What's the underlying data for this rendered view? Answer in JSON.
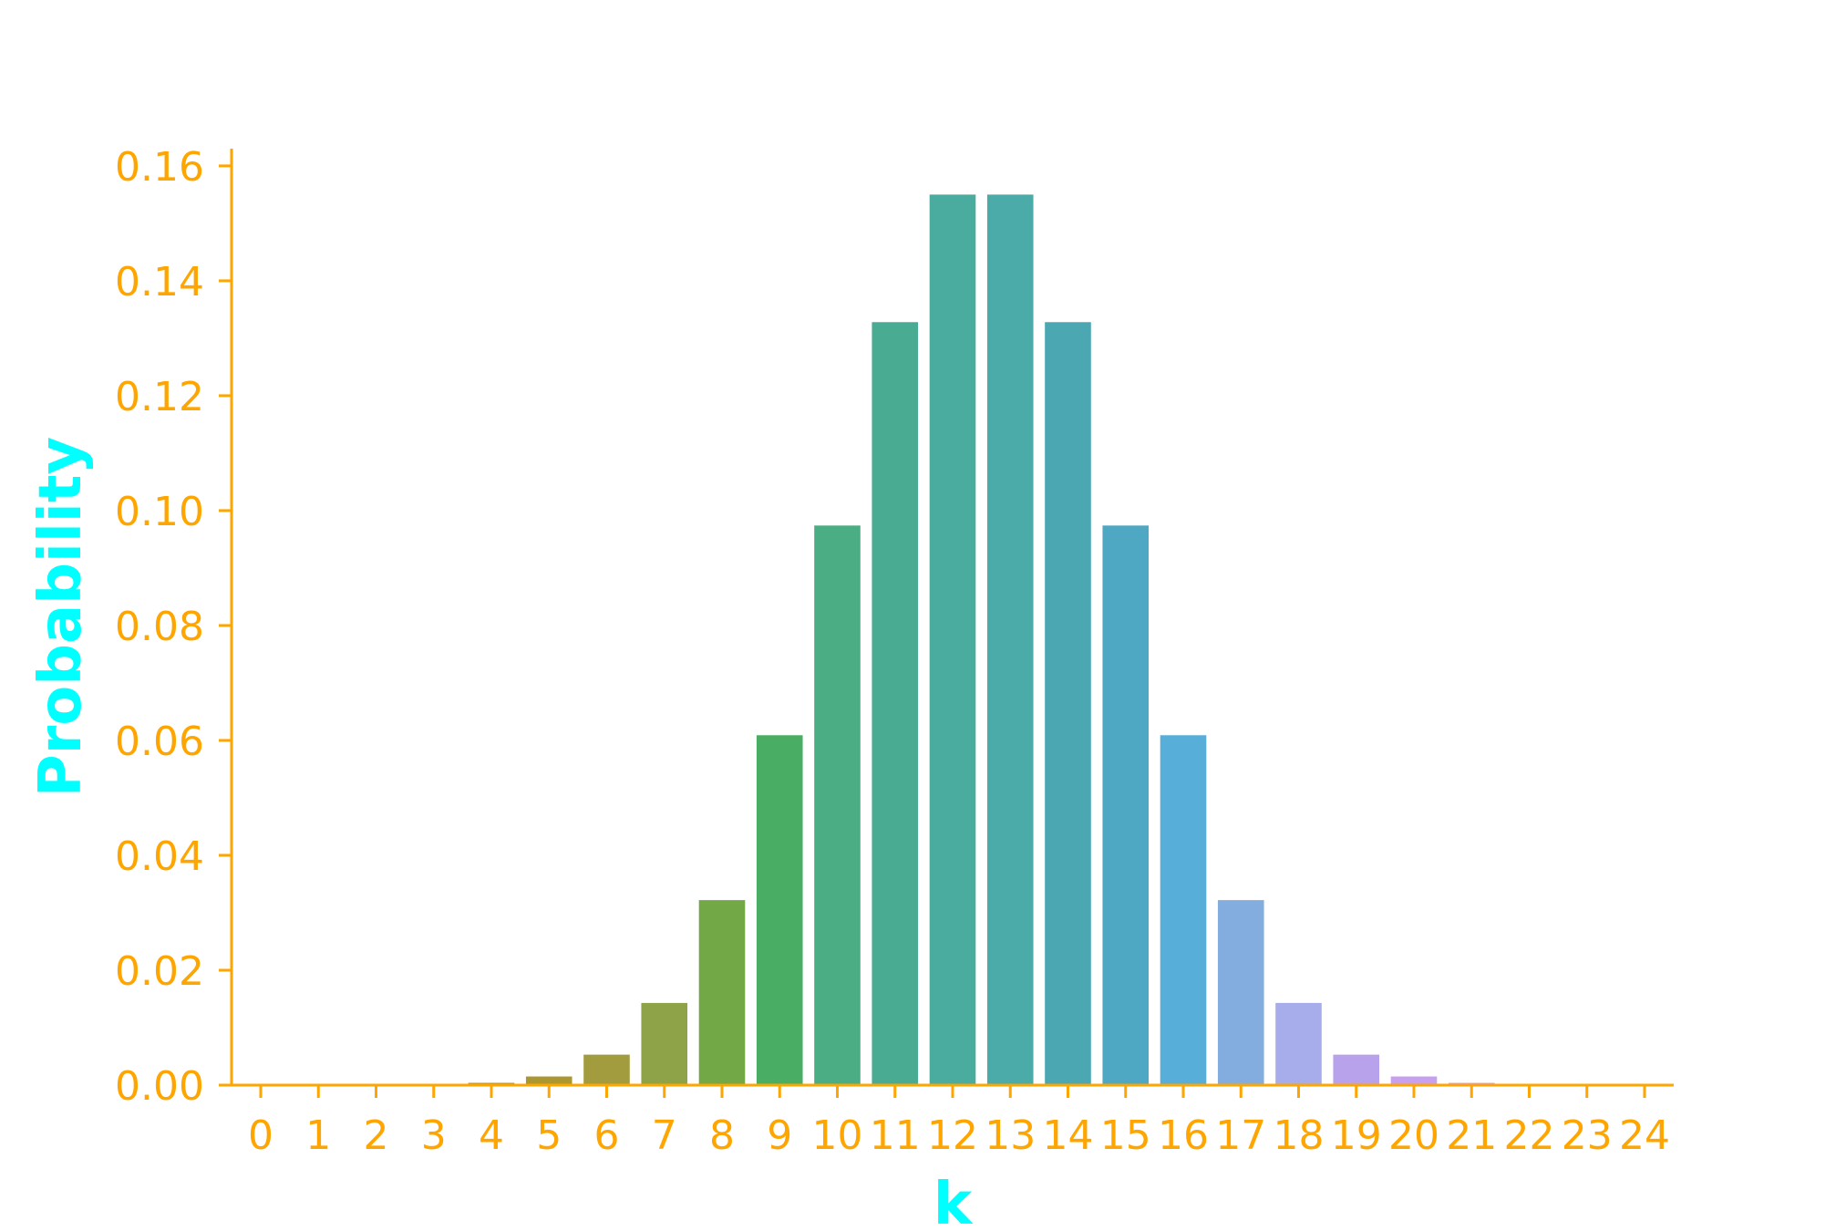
{
  "colors": {
    "axis": "#FFA500",
    "label": "#00FFFF",
    "background": "#FFFFFF"
  },
  "chart_data": {
    "type": "bar",
    "title": "",
    "xlabel": "k",
    "ylabel": "Probability",
    "ylim": [
      0,
      0.163
    ],
    "y_ticks": [
      "0.00",
      "0.02",
      "0.04",
      "0.06",
      "0.08",
      "0.10",
      "0.12",
      "0.14",
      "0.16"
    ],
    "y_tick_values": [
      0,
      0.02,
      0.04,
      0.06,
      0.08,
      0.1,
      0.12,
      0.14,
      0.16
    ],
    "categories": [
      "0",
      "1",
      "2",
      "3",
      "4",
      "5",
      "6",
      "7",
      "8",
      "9",
      "10",
      "11",
      "12",
      "13",
      "14",
      "15",
      "16",
      "17",
      "18",
      "19",
      "20",
      "21",
      "22",
      "23",
      "24"
    ],
    "values": [
      0.0,
      0.0,
      0.0,
      0.0001,
      0.0004,
      0.0015,
      0.0053,
      0.0143,
      0.0322,
      0.0609,
      0.0974,
      0.1328,
      0.155,
      0.155,
      0.1328,
      0.0974,
      0.0609,
      0.0322,
      0.0143,
      0.0053,
      0.0015,
      0.0004,
      0.0001,
      0.0,
      0.0
    ],
    "bar_colors": [
      "#c9892f",
      "#c58b2f",
      "#c08f2f",
      "#ba912f",
      "#b3942f",
      "#ab972f",
      "#a39c3f",
      "#8ea347",
      "#73a846",
      "#49ae63",
      "#4aad83",
      "#4aab93",
      "#4aab9f",
      "#4aaba9",
      "#4ba8b3",
      "#4ea8c3",
      "#57aed8",
      "#83acdf",
      "#a6adea",
      "#b9a2ec",
      "#c8a0f0",
      "#d5a0ee",
      "#dba0ea",
      "#e0a0e8",
      "#e4a0e6"
    ],
    "grid": false,
    "legend": "none"
  }
}
